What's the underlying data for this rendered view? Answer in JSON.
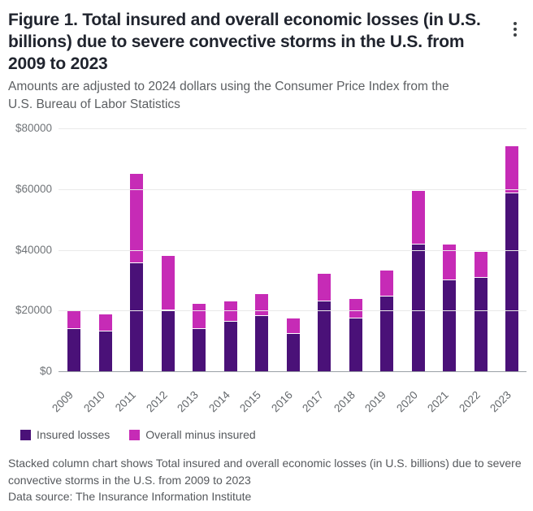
{
  "header": {
    "title": "Figure 1. Total insured and overall economic losses (in U.S. billions) due to severe convective storms in the U.S. from 2009 to 2023",
    "subtitle": "Amounts are adjusted to 2024 dollars using the Consumer Price Index from the U.S. Bureau of Labor Statistics",
    "menu_icon": "kebab-menu"
  },
  "chart_data": {
    "type": "bar",
    "stacked": true,
    "title": "Figure 1. Total insured and overall economic losses (in U.S. billions) due to severe convective storms in the U.S. from 2009 to 2023",
    "xlabel": "",
    "ylabel": "",
    "categories": [
      "2009",
      "2010",
      "2011",
      "2012",
      "2013",
      "2014",
      "2015",
      "2016",
      "2017",
      "2018",
      "2019",
      "2020",
      "2021",
      "2022",
      "2023"
    ],
    "series": [
      {
        "name": "Insured losses",
        "color": "#4a1178",
        "values": [
          14300,
          13500,
          35800,
          20400,
          14300,
          16700,
          18500,
          12600,
          23300,
          17700,
          24900,
          42000,
          30300,
          31100,
          58800
        ]
      },
      {
        "name": "Overall minus insured",
        "color": "#c62bb6",
        "values": [
          5500,
          5300,
          29100,
          17500,
          7800,
          6200,
          6800,
          4800,
          8900,
          6000,
          8200,
          17400,
          11500,
          8200,
          15300
        ]
      }
    ],
    "overall_totals": [
      19800,
      18800,
      64900,
      37900,
      22100,
      22900,
      25300,
      17400,
      32200,
      23700,
      33100,
      59400,
      41800,
      39300,
      74100
    ],
    "ylim": [
      0,
      80000
    ],
    "ytick_labels": [
      "$0",
      "$20000",
      "$40000",
      "$60000",
      "$80000"
    ],
    "grid": true,
    "legend_position": "bottom-left"
  },
  "legend": {
    "items": [
      {
        "label": "Insured losses",
        "color": "#4a1178"
      },
      {
        "label": "Overall minus insured",
        "color": "#c62bb6"
      }
    ]
  },
  "footer": {
    "description": "Stacked column chart shows Total insured and overall economic losses (in U.S. billions) due to severe convective storms in the U.S. from 2009 to 2023",
    "data_source": "Data source: The Insurance Information Institute"
  },
  "colors": {
    "title_text": "#20242e",
    "body_text": "#55585c",
    "axis_text": "#6f7377",
    "gridline": "#e9e9e9",
    "baseline": "#9aa0a6",
    "background": "#ffffff"
  }
}
